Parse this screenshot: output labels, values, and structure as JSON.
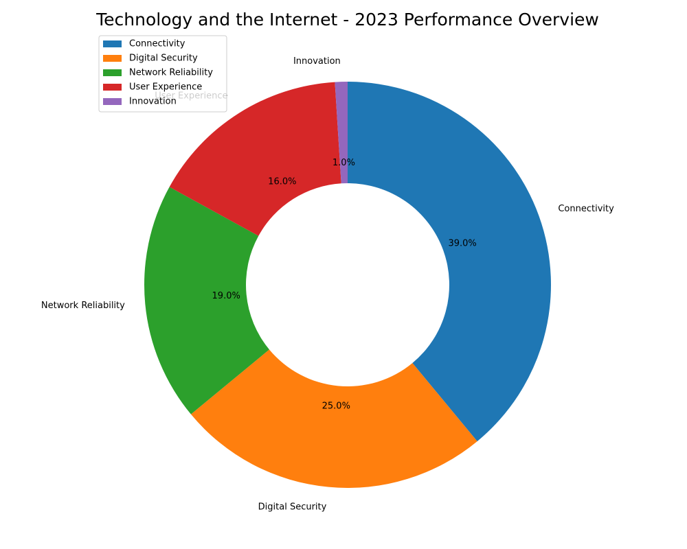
{
  "chart_data": {
    "type": "pie",
    "title": "Technology and the Internet - 2023 Performance Overview",
    "categories": [
      "Connectivity",
      "Digital Security",
      "Network Reliability",
      "User Experience",
      "Innovation"
    ],
    "values": [
      39,
      25,
      19,
      16,
      1
    ],
    "percent_labels": [
      "39.0%",
      "25.0%",
      "19.0%",
      "16.0%",
      "1.0%"
    ],
    "colors": [
      "#1f77b4",
      "#ff7f0e",
      "#2ca02c",
      "#d62728",
      "#9467bd"
    ],
    "donut": true,
    "start_angle_deg": 90,
    "direction": "clockwise",
    "legend": {
      "placement": "upper-left",
      "entries": [
        "Connectivity",
        "Digital Security",
        "Network Reliability",
        "User Experience",
        "Innovation"
      ]
    }
  }
}
